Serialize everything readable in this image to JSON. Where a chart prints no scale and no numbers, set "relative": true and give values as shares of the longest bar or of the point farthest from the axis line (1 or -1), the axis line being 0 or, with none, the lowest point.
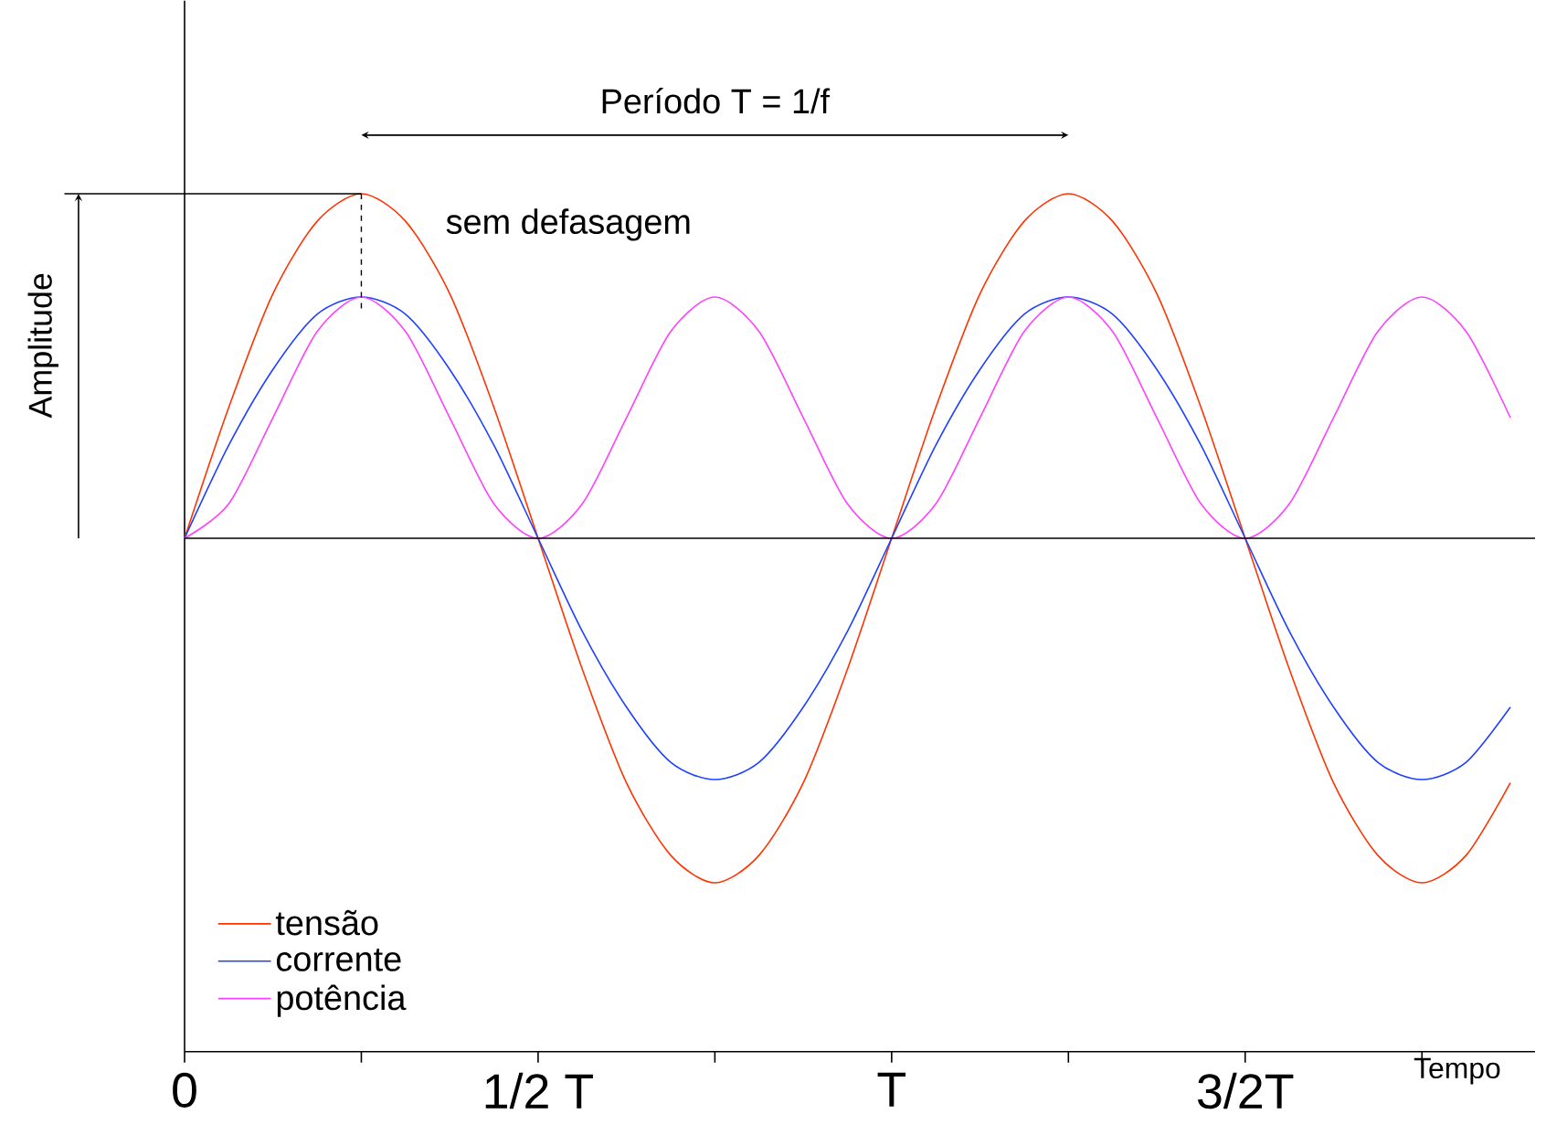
{
  "chart_data": {
    "type": "line",
    "relative": true,
    "xlabel": "Tempo",
    "ylabel": "Amplitude",
    "categories": [
      "0",
      null,
      null,
      null,
      null,
      null,
      null,
      null,
      "1/2 T",
      null,
      null,
      null,
      null,
      null,
      null,
      null,
      "T",
      null,
      null,
      null,
      null,
      null,
      null,
      null,
      "3/2T",
      null,
      null,
      null,
      null,
      null,
      null
    ],
    "series": [
      {
        "name": "tensão",
        "color": "#ff3300",
        "values": [
          0,
          0.38,
          0.71,
          0.92,
          1,
          0.92,
          0.71,
          0.38,
          0,
          -0.38,
          -0.71,
          -0.92,
          -1,
          -0.92,
          -0.71,
          -0.38,
          0,
          0.38,
          0.71,
          0.92,
          1,
          0.92,
          0.71,
          0.38,
          0,
          -0.38,
          -0.71,
          -0.92,
          -1,
          -0.92,
          -0.71
        ]
      },
      {
        "name": "corrente",
        "color": "#2040ff",
        "values": [
          0,
          0.27,
          0.49,
          0.65,
          0.7,
          0.65,
          0.49,
          0.27,
          0,
          -0.27,
          -0.49,
          -0.65,
          -0.7,
          -0.65,
          -0.49,
          -0.27,
          0,
          0.27,
          0.49,
          0.65,
          0.7,
          0.65,
          0.49,
          0.27,
          0,
          -0.27,
          -0.49,
          -0.65,
          -0.7,
          -0.65,
          -0.49
        ]
      },
      {
        "name": "potência",
        "color": "#ff40ff",
        "values": [
          0,
          0.1,
          0.35,
          0.6,
          0.7,
          0.6,
          0.35,
          0.1,
          0,
          0.1,
          0.35,
          0.6,
          0.7,
          0.6,
          0.35,
          0.1,
          0,
          0.1,
          0.35,
          0.6,
          0.7,
          0.6,
          0.35,
          0.1,
          0,
          0.1,
          0.35,
          0.6,
          0.7,
          0.6,
          0.35
        ]
      }
    ],
    "annotations": [
      "Período T = 1/f",
      "sem defasagem"
    ],
    "legend": "bottom left",
    "line_style": "solid"
  }
}
